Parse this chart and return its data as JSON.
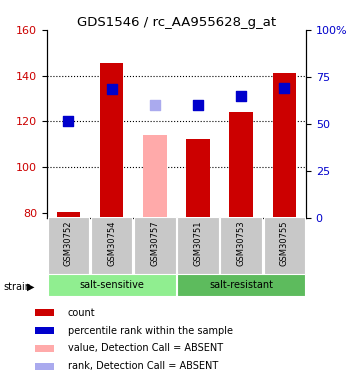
{
  "title": "GDS1546 / rc_AA955628_g_at",
  "samples": [
    "GSM30752",
    "GSM30754",
    "GSM30757",
    "GSM30751",
    "GSM30753",
    "GSM30755"
  ],
  "group_labels": [
    [
      "salt-sensitive",
      0,
      2
    ],
    [
      "salt-resistant",
      3,
      5
    ]
  ],
  "group_color_sensitive": "#90ee90",
  "group_color_resistant": "#5dbb5d",
  "ylim_left": [
    78,
    160
  ],
  "yticks_left": [
    80,
    100,
    120,
    140,
    160
  ],
  "yticks_right": [
    0,
    25,
    50,
    75,
    100
  ],
  "ytick_labels_right": [
    "0",
    "25",
    "50",
    "75",
    "100%"
  ],
  "bar_values": [
    80.5,
    145.5,
    null,
    112.5,
    124.0,
    141.0
  ],
  "bar_absent_values": [
    null,
    null,
    114.0,
    null,
    null,
    null
  ],
  "bar_color_present": "#cc0000",
  "bar_color_absent": "#ffaaaa",
  "rank_values": [
    120.0,
    134.0,
    null,
    127.0,
    131.0,
    134.5
  ],
  "rank_absent_values": [
    null,
    null,
    127.0,
    null,
    null,
    null
  ],
  "rank_color_present": "#0000cc",
  "rank_color_absent": "#aaaaee",
  "bar_bottom": 78,
  "background_color": "#ffffff",
  "label_color_left": "#cc0000",
  "label_color_right": "#0000cc",
  "legend_items": [
    {
      "label": "count",
      "color": "#cc0000"
    },
    {
      "label": "percentile rank within the sample",
      "color": "#0000cc"
    },
    {
      "label": "value, Detection Call = ABSENT",
      "color": "#ffaaaa"
    },
    {
      "label": "rank, Detection Call = ABSENT",
      "color": "#aaaaee"
    }
  ]
}
